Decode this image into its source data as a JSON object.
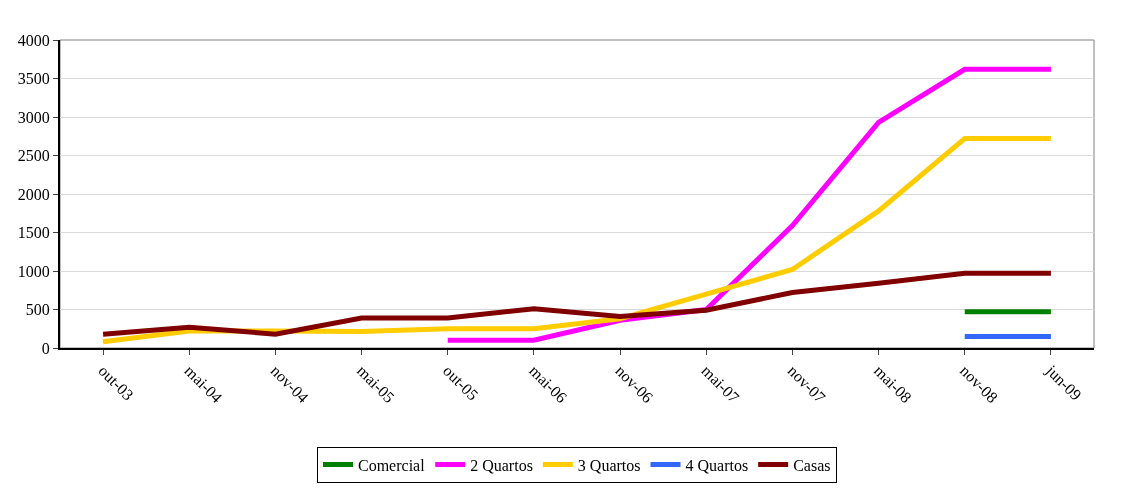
{
  "chart_data": {
    "type": "line",
    "categories": [
      "out-03",
      "mai-04",
      "nov-04",
      "mai-05",
      "out-05",
      "mai-06",
      "nov-06",
      "mai-07",
      "nov-07",
      "mai-08",
      "nov-08",
      "jun-09"
    ],
    "series": [
      {
        "name": "Comercial",
        "color": "#008000",
        "values": [
          null,
          null,
          null,
          null,
          null,
          null,
          null,
          null,
          null,
          null,
          470,
          470
        ]
      },
      {
        "name": "2 Quartos",
        "color": "#ff00ff",
        "values": [
          null,
          null,
          null,
          null,
          100,
          100,
          360,
          500,
          1590,
          2930,
          3620,
          3620
        ]
      },
      {
        "name": "3 Quartos",
        "color": "#ffcc00",
        "values": [
          80,
          220,
          220,
          215,
          250,
          250,
          380,
          700,
          1020,
          1780,
          2720,
          2720
        ]
      },
      {
        "name": "4 Quartos",
        "color": "#3366ff",
        "values": [
          null,
          null,
          null,
          null,
          null,
          null,
          null,
          null,
          null,
          null,
          150,
          150
        ]
      },
      {
        "name": "Casas",
        "color": "#800000",
        "values": [
          180,
          270,
          180,
          390,
          390,
          510,
          410,
          490,
          720,
          840,
          970,
          970
        ]
      }
    ],
    "ylim": [
      0,
      4000
    ],
    "yticks": [
      0,
      500,
      1000,
      1500,
      2000,
      2500,
      3000,
      3500,
      4000
    ],
    "grid": "y",
    "legend": "bottom",
    "marker": "none",
    "line_style": "solid"
  }
}
